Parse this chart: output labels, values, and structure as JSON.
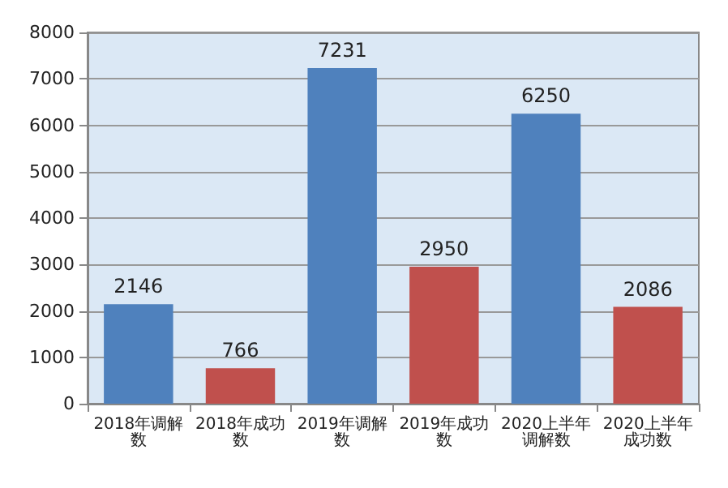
{
  "chart_data": {
    "type": "bar",
    "categories": [
      "2018年调解数",
      "2018年成功数",
      "2019年调解数",
      "2019年成功数",
      "2020上半年调解数",
      "2020上半年成功数"
    ],
    "values": [
      2146,
      766,
      7231,
      2950,
      6250,
      2086
    ],
    "colors": [
      "#4f81bd",
      "#c0504d",
      "#4f81bd",
      "#c0504d",
      "#4f81bd",
      "#c0504d"
    ],
    "ylim": [
      0,
      8000
    ],
    "yticks": [
      0,
      1000,
      2000,
      3000,
      4000,
      5000,
      6000,
      7000,
      8000
    ],
    "grid": "y",
    "data_labels": true
  }
}
